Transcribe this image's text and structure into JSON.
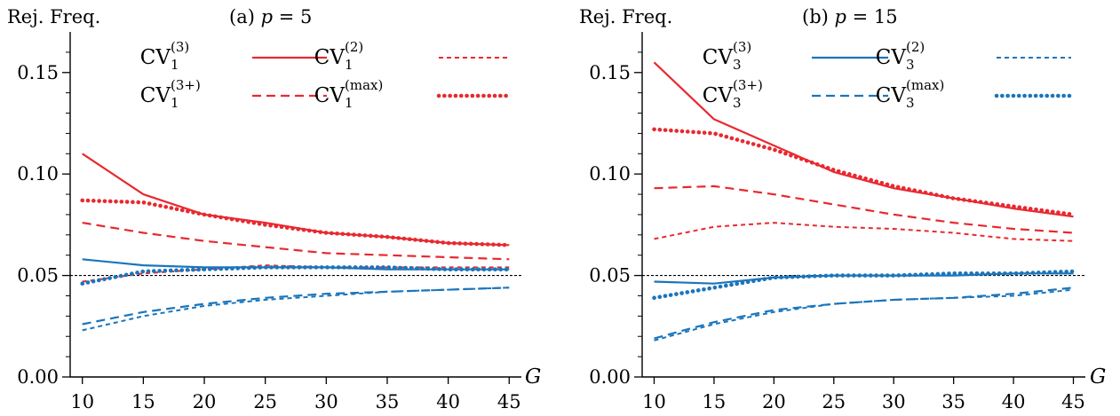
{
  "colors": {
    "red": "#e8292f",
    "blue": "#1b75bb",
    "axis": "#000000",
    "reference": "#000000"
  },
  "chart_data": [
    {
      "type": "line",
      "title": "(a) p = 5",
      "title_prefix": "(a)",
      "title_var": "p",
      "title_eq": " = 5",
      "ylabel": "Rej. Freq.",
      "xlabel": "G",
      "x": [
        10,
        15,
        20,
        25,
        30,
        35,
        40,
        45
      ],
      "xticks": [
        "10",
        "15",
        "20",
        "25",
        "30",
        "35",
        "40",
        "45"
      ],
      "yticks": [
        "0.00",
        "0.05",
        "0.10",
        "0.15"
      ],
      "ytick_values": [
        0,
        0.05,
        0.1,
        0.15
      ],
      "xlim": [
        9,
        46
      ],
      "ylim": [
        0,
        0.17
      ],
      "reference_line": 0.05,
      "legend_location": "top",
      "series": [
        {
          "legend": "CV",
          "sub": "1",
          "sup": "(3)",
          "color": "red",
          "style": "solid",
          "values": [
            0.11,
            0.09,
            0.08,
            0.076,
            0.071,
            0.069,
            0.066,
            0.065
          ]
        },
        {
          "legend": "CV",
          "sub": "1",
          "sup": "(2)",
          "color": "red",
          "style": "short-dash",
          "values": [
            0.047,
            0.051,
            0.053,
            0.055,
            0.054,
            0.054,
            0.054,
            0.054
          ]
        },
        {
          "legend": "CV",
          "sub": "1",
          "sup": "(3+)",
          "color": "red",
          "style": "dash",
          "values": [
            0.076,
            0.071,
            0.067,
            0.064,
            0.061,
            0.06,
            0.059,
            0.058
          ]
        },
        {
          "legend": "CV",
          "sub": "1",
          "sup": "(max)",
          "color": "red",
          "style": "dot",
          "values": [
            0.087,
            0.086,
            0.08,
            0.075,
            0.071,
            0.069,
            0.066,
            0.065
          ]
        },
        {
          "color": "blue",
          "style": "solid",
          "values": [
            0.058,
            0.055,
            0.054,
            0.054,
            0.054,
            0.053,
            0.053,
            0.053
          ]
        },
        {
          "color": "blue",
          "style": "short-dash",
          "values": [
            0.023,
            0.03,
            0.035,
            0.038,
            0.04,
            0.042,
            0.043,
            0.044
          ]
        },
        {
          "color": "blue",
          "style": "dash",
          "values": [
            0.026,
            0.032,
            0.036,
            0.039,
            0.041,
            0.042,
            0.043,
            0.044
          ]
        },
        {
          "color": "blue",
          "style": "dot",
          "values": [
            0.046,
            0.052,
            0.053,
            0.054,
            0.054,
            0.054,
            0.053,
            0.053
          ]
        }
      ]
    },
    {
      "type": "line",
      "title": "(b) p = 15",
      "title_prefix": "(b)",
      "title_var": "p",
      "title_eq": " = 15",
      "ylabel": "Rej. Freq.",
      "xlabel": "G",
      "x": [
        10,
        15,
        20,
        25,
        30,
        35,
        40,
        45
      ],
      "xticks": [
        "10",
        "15",
        "20",
        "25",
        "30",
        "35",
        "40",
        "45"
      ],
      "yticks": [
        "0.00",
        "0.05",
        "0.10",
        "0.15"
      ],
      "ytick_values": [
        0,
        0.05,
        0.1,
        0.15
      ],
      "xlim": [
        9,
        46
      ],
      "ylim": [
        0,
        0.17
      ],
      "reference_line": 0.05,
      "legend_location": "top",
      "series": [
        {
          "color": "red",
          "style": "solid",
          "values": [
            0.155,
            0.127,
            0.114,
            0.101,
            0.093,
            0.088,
            0.083,
            0.079
          ]
        },
        {
          "color": "red",
          "style": "short-dash",
          "values": [
            0.068,
            0.074,
            0.076,
            0.074,
            0.073,
            0.071,
            0.068,
            0.067
          ]
        },
        {
          "color": "red",
          "style": "dash",
          "values": [
            0.093,
            0.094,
            0.09,
            0.085,
            0.08,
            0.076,
            0.073,
            0.071
          ]
        },
        {
          "color": "red",
          "style": "dot",
          "values": [
            0.122,
            0.12,
            0.112,
            0.102,
            0.094,
            0.088,
            0.084,
            0.08
          ]
        },
        {
          "legend": "CV",
          "sub": "3",
          "sup": "(3)",
          "color": "blue",
          "style": "solid",
          "values": [
            0.047,
            0.046,
            0.049,
            0.05,
            0.05,
            0.05,
            0.051,
            0.051
          ]
        },
        {
          "legend": "CV",
          "sub": "3",
          "sup": "(2)",
          "color": "blue",
          "style": "short-dash",
          "values": [
            0.018,
            0.026,
            0.032,
            0.036,
            0.038,
            0.039,
            0.04,
            0.043
          ]
        },
        {
          "legend": "CV",
          "sub": "3",
          "sup": "(3+)",
          "color": "blue",
          "style": "dash",
          "values": [
            0.019,
            0.027,
            0.033,
            0.036,
            0.038,
            0.039,
            0.041,
            0.044
          ]
        },
        {
          "legend": "CV",
          "sub": "3",
          "sup": "(max)",
          "color": "blue",
          "style": "dot",
          "values": [
            0.039,
            0.044,
            0.049,
            0.05,
            0.05,
            0.051,
            0.051,
            0.052
          ]
        }
      ]
    }
  ]
}
